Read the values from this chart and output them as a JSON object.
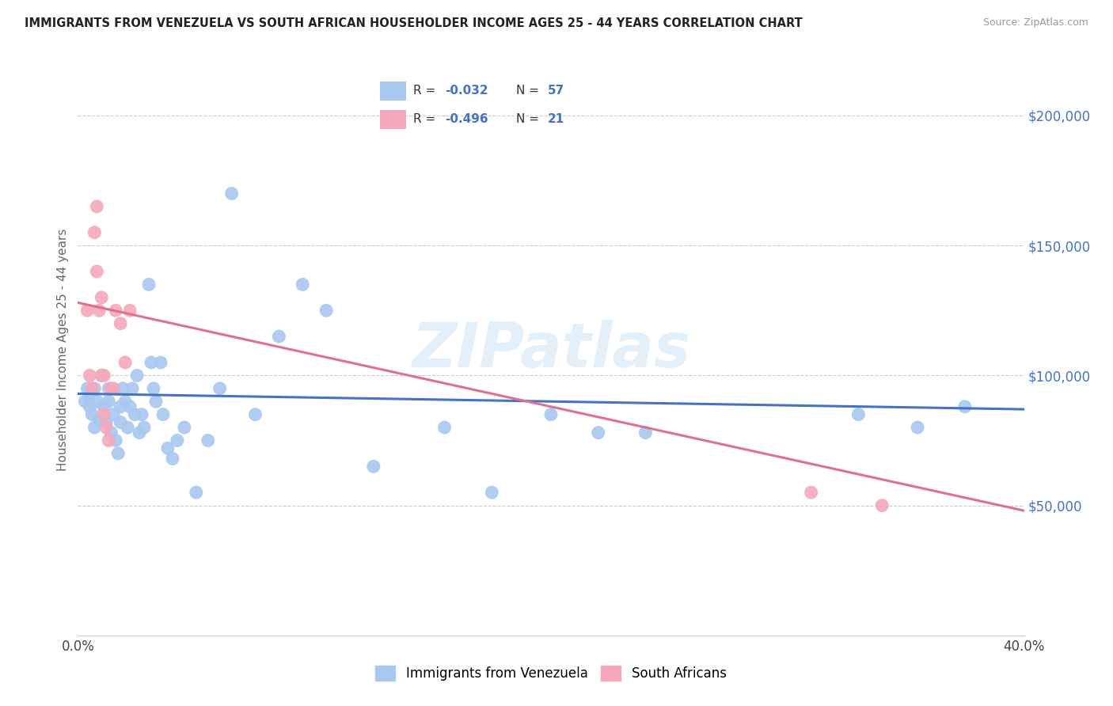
{
  "title": "IMMIGRANTS FROM VENEZUELA VS SOUTH AFRICAN HOUSEHOLDER INCOME AGES 25 - 44 YEARS CORRELATION CHART",
  "source": "Source: ZipAtlas.com",
  "ylabel": "Householder Income Ages 25 - 44 years",
  "xlim": [
    0,
    0.4
  ],
  "ylim": [
    0,
    220000
  ],
  "xticks": [
    0.0,
    0.05,
    0.1,
    0.15,
    0.2,
    0.25,
    0.3,
    0.35,
    0.4
  ],
  "ytick_right_labels": [
    "$50,000",
    "$100,000",
    "$150,000",
    "$200,000"
  ],
  "ytick_right_values": [
    50000,
    100000,
    150000,
    200000
  ],
  "legend_bottom1": "Immigrants from Venezuela",
  "legend_bottom2": "South Africans",
  "color_blue": "#A8C8F0",
  "color_pink": "#F5A8BC",
  "color_blue_dark": "#4472C4",
  "color_pink_dark": "#E07090",
  "color_right_axis": "#4472C4",
  "watermark": "ZIPatlas",
  "blue_line_x": [
    0.0,
    0.4
  ],
  "blue_line_y": [
    93000,
    87000
  ],
  "pink_line_x": [
    0.0,
    0.4
  ],
  "pink_line_y": [
    128000,
    48000
  ],
  "blue_scatter_x": [
    0.003,
    0.004,
    0.005,
    0.005,
    0.006,
    0.007,
    0.007,
    0.008,
    0.009,
    0.01,
    0.011,
    0.012,
    0.013,
    0.013,
    0.014,
    0.015,
    0.016,
    0.017,
    0.018,
    0.018,
    0.019,
    0.02,
    0.021,
    0.022,
    0.023,
    0.024,
    0.025,
    0.026,
    0.027,
    0.028,
    0.03,
    0.031,
    0.032,
    0.033,
    0.035,
    0.036,
    0.038,
    0.04,
    0.042,
    0.045,
    0.05,
    0.055,
    0.06,
    0.065,
    0.075,
    0.085,
    0.095,
    0.105,
    0.125,
    0.155,
    0.175,
    0.2,
    0.22,
    0.24,
    0.33,
    0.355,
    0.375
  ],
  "blue_scatter_y": [
    90000,
    95000,
    88000,
    92000,
    85000,
    80000,
    95000,
    90000,
    83000,
    100000,
    88000,
    82000,
    95000,
    90000,
    78000,
    85000,
    75000,
    70000,
    88000,
    82000,
    95000,
    90000,
    80000,
    88000,
    95000,
    85000,
    100000,
    78000,
    85000,
    80000,
    135000,
    105000,
    95000,
    90000,
    105000,
    85000,
    72000,
    68000,
    75000,
    80000,
    55000,
    75000,
    95000,
    170000,
    85000,
    115000,
    135000,
    125000,
    65000,
    80000,
    55000,
    85000,
    78000,
    78000,
    85000,
    80000,
    88000
  ],
  "pink_scatter_x": [
    0.004,
    0.005,
    0.006,
    0.007,
    0.008,
    0.008,
    0.009,
    0.01,
    0.01,
    0.011,
    0.011,
    0.012,
    0.013,
    0.014,
    0.015,
    0.016,
    0.018,
    0.02,
    0.022,
    0.31,
    0.34
  ],
  "pink_scatter_y": [
    125000,
    100000,
    95000,
    155000,
    165000,
    140000,
    125000,
    100000,
    130000,
    85000,
    100000,
    80000,
    75000,
    95000,
    95000,
    125000,
    120000,
    105000,
    125000,
    55000,
    50000
  ]
}
